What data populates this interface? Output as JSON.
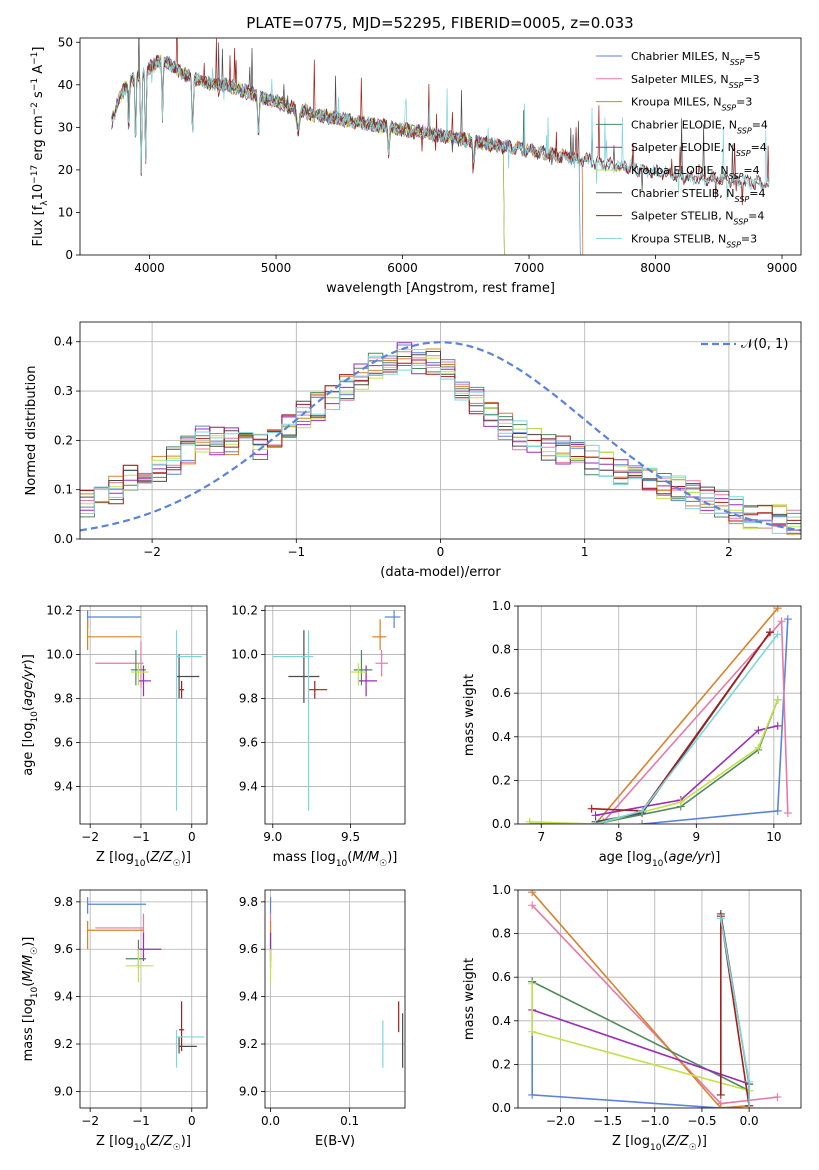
{
  "figure": {
    "title": "PLATE=0775, MJD=52295, FIBERID=0005, z=0.033"
  },
  "colors": {
    "Chabrier MILES": "#5b84d7",
    "Salpeter MILES": "#e67aa7",
    "Kroupa MILES": "#d9822b",
    "Chabrier ELODIE": "#4f8a5f",
    "Salpeter ELODIE": "#9a2eb8",
    "Kroupa ELODIE": "#c3e24a",
    "Chabrier STELIB": "#4d4d4d",
    "Salpeter STELIB": "#a51d1d",
    "Kroupa STELIB": "#7fd5dc"
  },
  "chart_data": [
    {
      "id": "spectrum",
      "type": "line",
      "xlabel": "wavelength [Angstrom, rest frame]",
      "ylabel": "Flux [f_λ 10^-17 erg cm^-2 s^-1 A^-1]",
      "xlim": [
        3450,
        9150
      ],
      "ylim": [
        0,
        51
      ],
      "xticks": [
        4000,
        5000,
        6000,
        7000,
        8000,
        9000
      ],
      "yticks": [
        0,
        10,
        20,
        30,
        40,
        50
      ],
      "grid": false,
      "legend": "top-right",
      "legend_entries": [
        {
          "model": "Chabrier MILES",
          "nssp": "5"
        },
        {
          "model": "Salpeter MILES",
          "nssp": "3"
        },
        {
          "model": "Kroupa MILES",
          "nssp": "3"
        },
        {
          "model": "Chabrier ELODIE",
          "nssp": "4"
        },
        {
          "model": "Salpeter ELODIE",
          "nssp": "4"
        },
        {
          "model": "Kroupa ELODIE",
          "nssp": "4"
        },
        {
          "model": "Chabrier STELIB",
          "nssp": "4"
        },
        {
          "model": "Salpeter STELIB",
          "nssp": "4"
        },
        {
          "model": "Kroupa STELIB",
          "nssp": "3"
        }
      ],
      "continuum": [
        [
          3700,
          31
        ],
        [
          3750,
          36
        ],
        [
          3800,
          39
        ],
        [
          3850,
          41
        ],
        [
          3900,
          42
        ],
        [
          3950,
          43
        ],
        [
          4000,
          44
        ],
        [
          4050,
          45
        ],
        [
          4100,
          46
        ],
        [
          4150,
          45
        ],
        [
          4200,
          44
        ],
        [
          4300,
          42
        ],
        [
          4400,
          41
        ],
        [
          4500,
          40
        ],
        [
          4600,
          40
        ],
        [
          4700,
          39
        ],
        [
          4800,
          38
        ],
        [
          4900,
          37
        ],
        [
          5000,
          36
        ],
        [
          5100,
          35
        ],
        [
          5200,
          34
        ],
        [
          5300,
          33
        ],
        [
          5400,
          32.5
        ],
        [
          5500,
          32
        ],
        [
          5600,
          31.5
        ],
        [
          5700,
          31
        ],
        [
          5800,
          30.5
        ],
        [
          5900,
          30
        ],
        [
          6000,
          29.5
        ],
        [
          6100,
          29
        ],
        [
          6200,
          28.5
        ],
        [
          6300,
          28
        ],
        [
          6400,
          27.5
        ],
        [
          6500,
          27
        ],
        [
          6600,
          26.5
        ],
        [
          6700,
          26
        ],
        [
          6800,
          25.5
        ],
        [
          6900,
          25
        ],
        [
          7000,
          24.5
        ],
        [
          7100,
          24
        ],
        [
          7200,
          23.5
        ],
        [
          7300,
          23
        ],
        [
          7400,
          22.5
        ],
        [
          7600,
          21.5
        ],
        [
          7800,
          20.5
        ],
        [
          8000,
          19.5
        ],
        [
          8200,
          18.5
        ],
        [
          8400,
          18
        ],
        [
          8600,
          17.5
        ],
        [
          8800,
          17
        ],
        [
          8900,
          16.5
        ]
      ],
      "endpoints": [
        [
          "Chabrier MILES",
          7400
        ],
        [
          "Salpeter MILES",
          7420
        ],
        [
          "Kroupa MILES",
          7420
        ],
        [
          "Chabrier ELODIE",
          6800
        ],
        [
          "Salpeter ELODIE",
          6800
        ],
        [
          "Kroupa ELODIE",
          6800
        ],
        [
          "Chabrier STELIB",
          8900
        ],
        [
          "Salpeter STELIB",
          8900
        ],
        [
          "Kroupa STELIB",
          8900
        ]
      ]
    },
    {
      "id": "residuals",
      "type": "line",
      "xlabel": "(data-model)/error",
      "ylabel": "Normed distribution",
      "xlim": [
        -2.5,
        2.5
      ],
      "ylim": [
        0,
        0.44
      ],
      "xticks": [
        -2,
        -1,
        0,
        1,
        2
      ],
      "yticks": [
        0.0,
        0.1,
        0.2,
        0.3,
        0.4
      ],
      "grid": true,
      "legend": "top-right",
      "reference_label": "𝒩(0, 1)",
      "histogram_bins": 50,
      "histogram_mean": [
        0.07,
        0.08,
        0.1,
        0.12,
        0.13,
        0.14,
        0.16,
        0.18,
        0.2,
        0.2,
        0.2,
        0.19,
        0.19,
        0.2,
        0.23,
        0.25,
        0.27,
        0.29,
        0.31,
        0.33,
        0.35,
        0.36,
        0.37,
        0.36,
        0.36,
        0.34,
        0.31,
        0.28,
        0.25,
        0.23,
        0.21,
        0.2,
        0.19,
        0.18,
        0.17,
        0.16,
        0.15,
        0.14,
        0.13,
        0.12,
        0.11,
        0.1,
        0.09,
        0.08,
        0.07,
        0.06,
        0.05,
        0.04,
        0.04,
        0.03
      ]
    },
    {
      "id": "age_vs_Z",
      "type": "scatter",
      "xlabel": "Z [log10(Z/Z☉)]",
      "ylabel": "age  [log10(age/yr)]",
      "xlim": [
        -2.2,
        0.3
      ],
      "ylim": [
        9.23,
        10.22
      ],
      "xticks": [
        -2,
        -1,
        0
      ],
      "yticks": [
        9.4,
        9.6,
        9.8,
        10.0,
        10.2
      ],
      "grid": true,
      "points": [
        {
          "model": "Chabrier MILES",
          "x": -2.05,
          "y": 10.17,
          "xlo": -2.05,
          "xhi": -1.0,
          "ylo": 10.12,
          "yhi": 10.2
        },
        {
          "model": "Salpeter MILES",
          "x": -1.0,
          "y": 9.96,
          "xlo": -1.9,
          "xhi": -0.95,
          "ylo": 9.85,
          "yhi": 10.06
        },
        {
          "model": "Kroupa MILES",
          "x": -2.05,
          "y": 10.08,
          "xlo": -2.05,
          "xhi": -1.0,
          "ylo": 10.02,
          "yhi": 10.16
        },
        {
          "model": "Chabrier ELODIE",
          "x": -1.1,
          "y": 9.93,
          "xlo": -1.2,
          "xhi": -0.9,
          "ylo": 9.86,
          "yhi": 10.02
        },
        {
          "model": "Salpeter ELODIE",
          "x": -0.95,
          "y": 9.88,
          "xlo": -1.05,
          "xhi": -0.8,
          "ylo": 9.81,
          "yhi": 9.95
        },
        {
          "model": "Kroupa ELODIE",
          "x": -1.05,
          "y": 9.92,
          "xlo": -1.2,
          "xhi": -0.85,
          "ylo": 9.86,
          "yhi": 9.96
        },
        {
          "model": "Chabrier STELIB",
          "x": -0.25,
          "y": 9.9,
          "xlo": -0.3,
          "xhi": 0.15,
          "ylo": 9.8,
          "yhi": 10.0
        },
        {
          "model": "Salpeter STELIB",
          "x": -0.2,
          "y": 9.84,
          "xlo": -0.25,
          "xhi": -0.15,
          "ylo": 9.8,
          "yhi": 9.88
        },
        {
          "model": "Kroupa STELIB",
          "x": -0.3,
          "y": 9.99,
          "xlo": -0.3,
          "xhi": 0.2,
          "ylo": 9.29,
          "yhi": 10.11
        }
      ]
    },
    {
      "id": "age_vs_mass",
      "type": "scatter",
      "xlabel": "mass [log10(M/M☉)]",
      "ylabel": "",
      "xlim": [
        8.95,
        9.85
      ],
      "ylim": [
        9.23,
        10.22
      ],
      "xticks": [
        9.0,
        9.5
      ],
      "yticks": [
        9.4,
        9.6,
        9.8,
        10.0,
        10.2
      ],
      "grid": true,
      "points": [
        {
          "model": "Chabrier MILES",
          "x": 9.78,
          "y": 10.17,
          "xlo": 9.72,
          "xhi": 9.82,
          "ylo": 10.12,
          "yhi": 10.2
        },
        {
          "model": "Salpeter MILES",
          "x": 9.7,
          "y": 9.96,
          "xlo": 9.66,
          "xhi": 9.74,
          "ylo": 9.9,
          "yhi": 10.02
        },
        {
          "model": "Kroupa MILES",
          "x": 9.69,
          "y": 10.08,
          "xlo": 9.64,
          "xhi": 9.73,
          "ylo": 10.02,
          "yhi": 10.16
        },
        {
          "model": "Chabrier ELODIE",
          "x": 9.57,
          "y": 9.93,
          "xlo": 9.52,
          "xhi": 9.64,
          "ylo": 9.86,
          "yhi": 10.02
        },
        {
          "model": "Salpeter ELODIE",
          "x": 9.6,
          "y": 9.88,
          "xlo": 9.55,
          "xhi": 9.67,
          "ylo": 9.81,
          "yhi": 9.95
        },
        {
          "model": "Kroupa ELODIE",
          "x": 9.55,
          "y": 9.92,
          "xlo": 9.5,
          "xhi": 9.6,
          "ylo": 9.86,
          "yhi": 9.96
        },
        {
          "model": "Chabrier STELIB",
          "x": 9.2,
          "y": 9.9,
          "xlo": 9.1,
          "xhi": 9.3,
          "ylo": 9.78,
          "yhi": 10.11
        },
        {
          "model": "Salpeter STELIB",
          "x": 9.27,
          "y": 9.84,
          "xlo": 9.23,
          "xhi": 9.35,
          "ylo": 9.8,
          "yhi": 9.88
        },
        {
          "model": "Kroupa STELIB",
          "x": 9.23,
          "y": 9.99,
          "xlo": 9.0,
          "xhi": 9.26,
          "ylo": 9.29,
          "yhi": 10.11
        }
      ]
    },
    {
      "id": "massweight_vs_age",
      "type": "line",
      "xlabel": "age  [log10(age/yr)]",
      "ylabel": "mass weight",
      "xlim": [
        6.7,
        10.35
      ],
      "ylim": [
        0,
        1.0
      ],
      "xticks": [
        7,
        8,
        9,
        10
      ],
      "yticks": [
        0.0,
        0.2,
        0.4,
        0.6,
        0.8,
        1.0
      ],
      "grid": true,
      "series": [
        {
          "model": "Chabrier MILES",
          "x": [
            8.3,
            10.05,
            10.18
          ],
          "y": [
            0.0,
            0.06,
            0.94
          ]
        },
        {
          "model": "Salpeter MILES",
          "x": [
            7.8,
            10.1,
            10.18
          ],
          "y": [
            0.01,
            0.93,
            0.05
          ]
        },
        {
          "model": "Kroupa MILES",
          "x": [
            7.7,
            10.05
          ],
          "y": [
            0.0,
            0.99
          ]
        },
        {
          "model": "Chabrier ELODIE",
          "x": [
            6.85,
            7.7,
            8.8,
            9.8,
            10.05
          ],
          "y": [
            0.0,
            0.0,
            0.08,
            0.34,
            0.57
          ]
        },
        {
          "model": "Salpeter ELODIE",
          "x": [
            7.7,
            8.8,
            9.8,
            10.05
          ],
          "y": [
            0.04,
            0.11,
            0.43,
            0.45
          ]
        },
        {
          "model": "Kroupa ELODIE",
          "x": [
            6.85,
            7.7,
            8.8,
            9.8,
            10.05
          ],
          "y": [
            0.01,
            0.0,
            0.1,
            0.35,
            0.57
          ]
        },
        {
          "model": "Chabrier STELIB",
          "x": [
            7.7,
            8.3,
            9.95
          ],
          "y": [
            0.01,
            0.05,
            0.88
          ]
        },
        {
          "model": "Salpeter STELIB",
          "x": [
            7.65,
            8.3,
            9.95
          ],
          "y": [
            0.07,
            0.06,
            0.88
          ]
        },
        {
          "model": "Kroupa STELIB",
          "x": [
            7.7,
            8.3,
            10.05
          ],
          "y": [
            0.0,
            0.06,
            0.87
          ]
        }
      ]
    },
    {
      "id": "mass_vs_Z",
      "type": "scatter",
      "xlabel": "Z [log10(Z/Z☉)]",
      "ylabel": "mass [log10(M/M☉)]",
      "xlim": [
        -2.2,
        0.3
      ],
      "ylim": [
        8.93,
        9.85
      ],
      "xticks": [
        -2,
        -1,
        0
      ],
      "yticks": [
        9.0,
        9.2,
        9.4,
        9.6,
        9.8
      ],
      "grid": true,
      "points": [
        {
          "model": "Chabrier MILES",
          "x": -2.05,
          "y": 9.79,
          "xlo": -2.05,
          "xhi": -0.9,
          "ylo": 9.75,
          "yhi": 9.82
        },
        {
          "model": "Salpeter MILES",
          "x": -0.95,
          "y": 9.69,
          "xlo": -1.9,
          "xhi": -0.95,
          "ylo": 9.64,
          "yhi": 9.75
        },
        {
          "model": "Kroupa MILES",
          "x": -2.05,
          "y": 9.68,
          "xlo": -2.05,
          "xhi": -0.95,
          "ylo": 9.6,
          "yhi": 9.72
        },
        {
          "model": "Chabrier ELODIE",
          "x": -1.05,
          "y": 9.56,
          "xlo": -1.3,
          "xhi": -0.9,
          "ylo": 9.52,
          "yhi": 9.64
        },
        {
          "model": "Salpeter ELODIE",
          "x": -0.95,
          "y": 9.6,
          "xlo": -1.05,
          "xhi": -0.6,
          "ylo": 9.55,
          "yhi": 9.67
        },
        {
          "model": "Kroupa ELODIE",
          "x": -1.05,
          "y": 9.53,
          "xlo": -1.3,
          "xhi": -0.75,
          "ylo": 9.46,
          "yhi": 9.6
        },
        {
          "model": "Chabrier STELIB",
          "x": -0.25,
          "y": 9.19,
          "xlo": -0.25,
          "xhi": 0.1,
          "ylo": 9.16,
          "yhi": 9.23
        },
        {
          "model": "Salpeter STELIB",
          "x": -0.2,
          "y": 9.26,
          "xlo": -0.25,
          "xhi": -0.15,
          "ylo": 9.17,
          "yhi": 9.38
        },
        {
          "model": "Kroupa STELIB",
          "x": -0.3,
          "y": 9.23,
          "xlo": -0.3,
          "xhi": 0.25,
          "ylo": 9.1,
          "yhi": 9.26
        }
      ]
    },
    {
      "id": "mass_vs_EBV",
      "type": "scatter",
      "xlabel": "E(B-V)",
      "ylabel": "",
      "xlim": [
        -0.007,
        0.17
      ],
      "ylim": [
        8.93,
        9.85
      ],
      "xticks": [
        0.0,
        0.1
      ],
      "yticks": [
        9.0,
        9.2,
        9.4,
        9.6,
        9.8
      ],
      "grid": true,
      "points": [
        {
          "model": "Chabrier MILES",
          "x": 0.0,
          "y": 9.79,
          "xlo": 0.0,
          "xhi": 0.0,
          "ylo": 9.75,
          "yhi": 9.82
        },
        {
          "model": "Salpeter MILES",
          "x": 0.0,
          "y": 9.69,
          "xlo": 0.0,
          "xhi": 0.0,
          "ylo": 9.64,
          "yhi": 9.75
        },
        {
          "model": "Kroupa MILES",
          "x": 0.0,
          "y": 9.68,
          "xlo": 0.0,
          "xhi": 0.0,
          "ylo": 9.6,
          "yhi": 9.72
        },
        {
          "model": "Chabrier ELODIE",
          "x": 0.0,
          "y": 9.56,
          "xlo": 0.0,
          "xhi": 0.0,
          "ylo": 9.52,
          "yhi": 9.64
        },
        {
          "model": "Salpeter ELODIE",
          "x": 0.0,
          "y": 9.6,
          "xlo": 0.0,
          "xhi": 0.0,
          "ylo": 9.55,
          "yhi": 9.67
        },
        {
          "model": "Kroupa ELODIE",
          "x": 0.0,
          "y": 9.53,
          "xlo": 0.0,
          "xhi": 0.0,
          "ylo": 9.46,
          "yhi": 9.6
        },
        {
          "model": "Chabrier STELIB",
          "x": 0.167,
          "y": 9.19,
          "xlo": 0.167,
          "xhi": 0.167,
          "ylo": 9.1,
          "yhi": 9.33
        },
        {
          "model": "Salpeter STELIB",
          "x": 0.162,
          "y": 9.3,
          "xlo": 0.162,
          "xhi": 0.162,
          "ylo": 9.25,
          "yhi": 9.38
        },
        {
          "model": "Kroupa STELIB",
          "x": 0.142,
          "y": 9.23,
          "xlo": 0.142,
          "xhi": 0.142,
          "ylo": 9.1,
          "yhi": 9.3
        }
      ]
    },
    {
      "id": "massweight_vs_Z",
      "type": "line",
      "xlabel": "Z [log10(Z/Z☉)]",
      "ylabel": "mass weight",
      "xlim": [
        -2.45,
        0.55
      ],
      "ylim": [
        0,
        1.0
      ],
      "xticks": [
        -2.0,
        -1.5,
        -1.0,
        -0.5,
        0.0
      ],
      "yticks": [
        0.0,
        0.2,
        0.4,
        0.6,
        0.8,
        1.0
      ],
      "grid": true,
      "series": [
        {
          "model": "Chabrier MILES",
          "x": [
            -2.3,
            -2.3,
            -0.3,
            0.0
          ],
          "y": [
            0.58,
            0.06,
            0.0,
            0.01
          ]
        },
        {
          "model": "Salpeter MILES",
          "x": [
            -2.3,
            -0.3,
            0.3
          ],
          "y": [
            0.93,
            0.02,
            0.05
          ]
        },
        {
          "model": "Kroupa MILES",
          "x": [
            -2.3,
            -0.3,
            0.0
          ],
          "y": [
            0.99,
            0.0,
            0.01
          ]
        },
        {
          "model": "Chabrier ELODIE",
          "x": [
            -2.3,
            0.0,
            0.0
          ],
          "y": [
            0.58,
            0.08,
            0.0
          ]
        },
        {
          "model": "Salpeter ELODIE",
          "x": [
            -2.3,
            0.0,
            0.0
          ],
          "y": [
            0.45,
            0.11,
            0.0
          ]
        },
        {
          "model": "Kroupa ELODIE",
          "x": [
            -2.3,
            -2.3,
            0.0
          ],
          "y": [
            0.57,
            0.35,
            0.08
          ]
        },
        {
          "model": "Chabrier STELIB",
          "x": [
            -0.3,
            0.0,
            0.0
          ],
          "y": [
            0.89,
            0.11,
            0.0
          ]
        },
        {
          "model": "Salpeter STELIB",
          "x": [
            -0.3,
            -0.3,
            0.0
          ],
          "y": [
            0.06,
            0.88,
            0.01
          ]
        },
        {
          "model": "Kroupa STELIB",
          "x": [
            -0.3,
            0.0,
            0.0
          ],
          "y": [
            0.87,
            0.12,
            0.0
          ]
        }
      ]
    }
  ]
}
